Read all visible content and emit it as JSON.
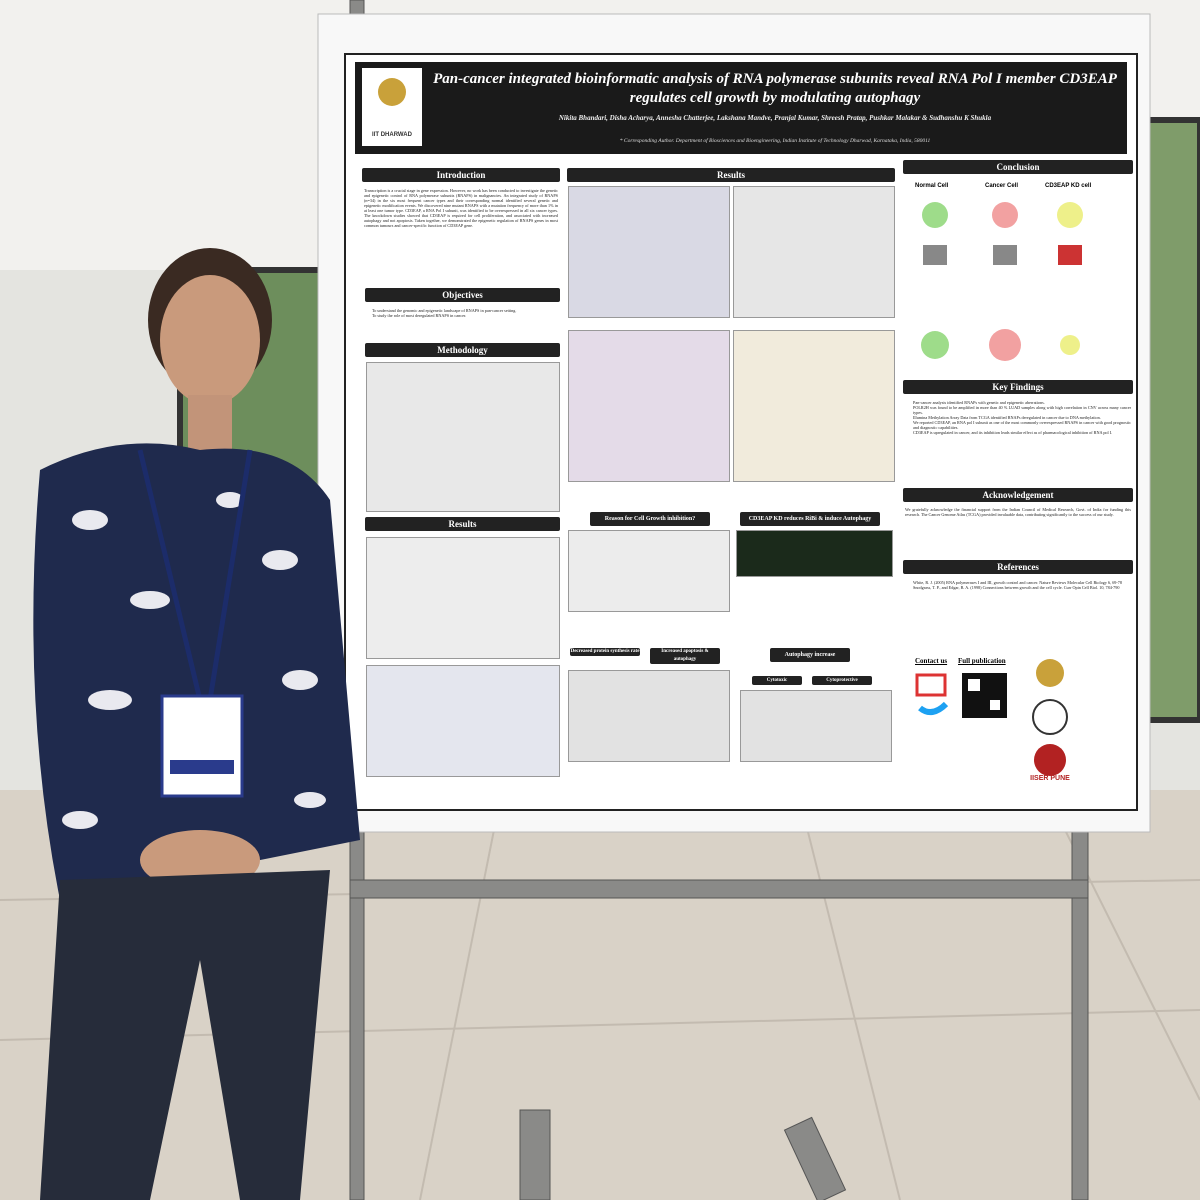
{
  "poster": {
    "logo_left": "IIT DHARWAD",
    "title": "Pan-cancer integrated bioinformatic analysis of RNA polymerase subunits reveal RNA Pol I member CD3EAP regulates cell growth by modulating autophagy",
    "authors": "Nikita Bhandari, Disha Acharya, Annesha Chatterjee, Lakshana Mandve, Pranjal Kumar, Shreesh Pratap, Pushkar Malakar & Sudhanshu K Shukla",
    "affiliation": "* Corresponding Author. Department of Biosciences and Bioengineering, Indian Institute of Technology Dharwad, Karnataka, India, 580011",
    "introduction": {
      "heading": "Introduction",
      "body": "Transcription is a crucial stage in gene expression. However, no work has been conducted to investigate the genetic and epigenetic control of RNA polymerase subunits (RNAPS) in malignancies. An integrated study of RNAPS (n=34) in the six most frequent cancer types and their corresponding normal identified several genetic and epigenetic modification events. We discovered nine mutant RNAPS with a mutation frequency of more than 1% in at least one tumor type. CD3EAP, a RNA Pol I subunit, was identified to be overexpressed in all six cancer types. The knockdown studies showed that CD3EAP is required for cell proliferation, and associated with increased autophagy and not apoptosis. Taken together, we demonstrated the epigenetic regulation of RNAPS genes in most common tumours and cancer-specific function of CD3EAP gene."
    },
    "objectives": {
      "heading": "Objectives",
      "items": [
        "To understand the genomic and epigenetic landscape of RNAPS in pan-cancer setting.",
        "To study the role of most deregulated RNAPS in cancer."
      ]
    },
    "methodology": {
      "heading": "Methodology"
    },
    "results_left": {
      "heading": "Results"
    },
    "results_main": {
      "heading": "Results",
      "box1": "Reason for Cell Growth inhibition?",
      "box2": "CD3EAP KD reduces RiBi & induce Autophagy",
      "out1": "Decreased protein synthesis rate",
      "out2": "Increased apoptosis & autophagy",
      "out3": "Autophagy increase",
      "out4": "Cytotoxic",
      "out5": "Cytoprotective"
    },
    "conclusion": {
      "heading": "Conclusion",
      "cells": [
        "Normal Cell",
        "Cancer Cell",
        "CD3EAP KD cell"
      ]
    },
    "key_findings": {
      "heading": "Key Findings",
      "items": [
        "Pan-cancer analysis identified RNAPs with genetic and epigenetic aberrations.",
        "POLR2H was found to be amplified in more than 40 % LUAD samples along with high correlation in CNV across many cancer types.",
        "Illumina Methylation Array Data from TCGA identified RNAPs deregulated in cancer due to DNA methylation.",
        "We reported CD3EAP, an RNA pol I subunit as one of the most commonly overexpressed RNAPS in cancer with good prognostic and diagnostic capabilities.",
        "CD3EAP is upregulated in cancer, and its inhibition leads similar effect as of pharmacological inhibition of RNA pol I."
      ]
    },
    "acknowledgement": {
      "heading": "Acknowledgement",
      "body": "We gratefully acknowledge the financial support from the Indian Council of Medical Research, Govt. of India for funding this research. The Cancer Genome Atlas (TCGA) provided invaluable data, contributing significantly to the success of our study."
    },
    "references": {
      "heading": "References",
      "items": [
        "White, R. J. (2005) RNA polymerases I and III, growth control and cancer. Nature Reviews Molecular Cell Biology 6, 69-78",
        "Snodgrass, T. P., and Edgar, B. A. (1998) Connections between growth and the cell cycle. Curr Opin Cell Biol. 10, 784-790"
      ]
    },
    "contact": "Contact us",
    "publication": "Full publication",
    "logo_right": "IISER PUNE"
  }
}
